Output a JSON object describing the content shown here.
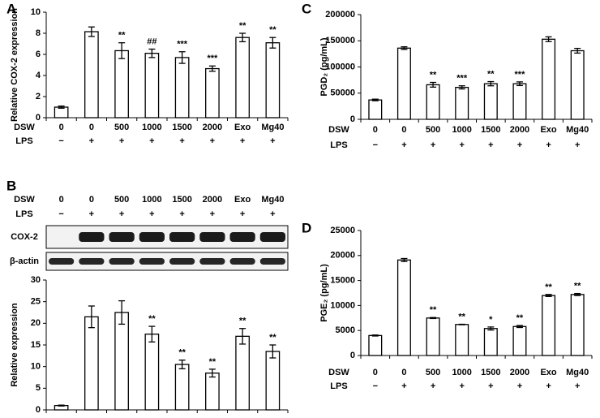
{
  "chart_data": [
    {
      "type": "bar",
      "label": "A",
      "ylabel": "Relative COX-2 expression",
      "row_labels": [
        "DSW",
        "LPS"
      ],
      "categories": [
        "0",
        "0",
        "500",
        "1000",
        "1500",
        "2000",
        "Exo",
        "Mg40"
      ],
      "lps": [
        "−",
        "+",
        "+",
        "+",
        "+",
        "+",
        "+",
        "+"
      ],
      "values": [
        1.0,
        8.15,
        6.35,
        6.1,
        5.7,
        4.65,
        7.6,
        7.1
      ],
      "errors": [
        0.1,
        0.45,
        0.75,
        0.4,
        0.55,
        0.25,
        0.4,
        0.5
      ],
      "annotations": [
        null,
        null,
        "**",
        "##",
        "***",
        "***",
        "**",
        "**"
      ],
      "ylim": [
        0,
        10
      ],
      "yticks": [
        0,
        2,
        4,
        6,
        8,
        10
      ],
      "color": "#ffffff"
    },
    {
      "type": "bar",
      "label": "B",
      "ylabel": "Relative expression",
      "row_labels": [
        "DSW",
        "LPS"
      ],
      "categories": [
        "0",
        "0",
        "500",
        "1000",
        "1500",
        "2000",
        "Exo",
        "Mg40"
      ],
      "lps": [
        "−",
        "+",
        "+",
        "+",
        "+",
        "+",
        "+",
        "+"
      ],
      "blot_labels": [
        "COX-2",
        "β-actin"
      ],
      "values": [
        1,
        21.5,
        22.5,
        17.5,
        10.5,
        8.5,
        17,
        13.5
      ],
      "errors": [
        0.1,
        2.5,
        2.7,
        1.8,
        1.0,
        0.9,
        1.8,
        1.5
      ],
      "annotations": [
        null,
        null,
        null,
        "**",
        "**",
        "**",
        "**",
        "**"
      ],
      "ylim": [
        0,
        30
      ],
      "yticks": [
        0,
        5,
        10,
        15,
        20,
        25,
        30
      ],
      "color": "#ffffff"
    },
    {
      "type": "bar",
      "label": "C",
      "ylabel": "PGD₂ (pg/mL)",
      "row_labels": [
        "DSW",
        "LPS"
      ],
      "categories": [
        "0",
        "0",
        "500",
        "1000",
        "1500",
        "2000",
        "Exo",
        "Mg40"
      ],
      "lps": [
        "−",
        "+",
        "+",
        "+",
        "+",
        "+",
        "+",
        "+"
      ],
      "values": [
        37000,
        136000,
        66000,
        61000,
        68000,
        68000,
        153000,
        131000
      ],
      "errors": [
        1500,
        2500,
        4500,
        3000,
        4000,
        3500,
        4500,
        4500
      ],
      "annotations": [
        null,
        null,
        "**",
        "***",
        "**",
        "***",
        null,
        null
      ],
      "ylim": [
        0,
        200000
      ],
      "yticks": [
        0,
        50000,
        100000,
        150000,
        200000
      ],
      "color": "#ffffff"
    },
    {
      "type": "bar",
      "label": "D",
      "ylabel": "PGE₂ (pg/mL)",
      "row_labels": [
        "DSW",
        "LPS"
      ],
      "categories": [
        "0",
        "0",
        "500",
        "1000",
        "1500",
        "2000",
        "Exo",
        "Mg40"
      ],
      "lps": [
        "−",
        "+",
        "+",
        "+",
        "+",
        "+",
        "+",
        "+"
      ],
      "values": [
        4000,
        19100,
        7500,
        6200,
        5400,
        5800,
        12000,
        12200
      ],
      "errors": [
        100,
        300,
        100,
        50,
        300,
        200,
        200,
        200
      ],
      "annotations": [
        null,
        null,
        "**",
        "**",
        "*",
        "**",
        "**",
        "**"
      ],
      "ylim": [
        0,
        25000
      ],
      "yticks": [
        0,
        5000,
        10000,
        15000,
        20000,
        25000
      ],
      "color": "#ffffff"
    }
  ]
}
